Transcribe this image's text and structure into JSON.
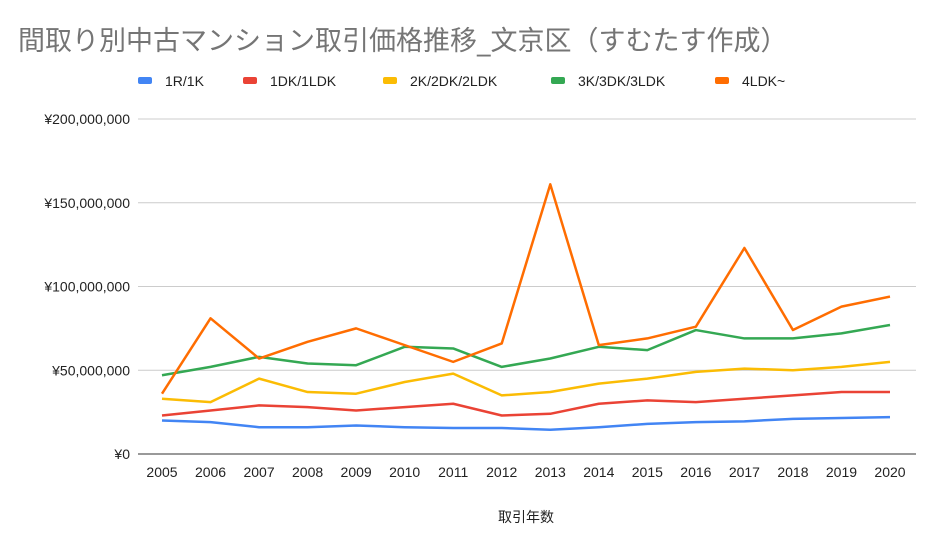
{
  "chart_data": {
    "type": "line",
    "title": "間取り別中古マンション取引価格推移_文京区（すむたす作成）",
    "xlabel": "取引年数",
    "ylabel": "",
    "categories": [
      "2005",
      "2006",
      "2007",
      "2008",
      "2009",
      "2010",
      "2011",
      "2012",
      "2013",
      "2014",
      "2015",
      "2016",
      "2017",
      "2018",
      "2019",
      "2020"
    ],
    "ylim": [
      0,
      200000000
    ],
    "yticks": [
      0,
      50000000,
      100000000,
      150000000,
      200000000
    ],
    "ytick_labels": [
      "¥0",
      "¥50,000,000",
      "¥100,000,000",
      "¥150,000,000",
      "¥200,000,000"
    ],
    "grid": true,
    "legend_position": "top",
    "series": [
      {
        "name": "1R/1K",
        "color": "#4285f4",
        "values": [
          20000000,
          19000000,
          16000000,
          16000000,
          17000000,
          16000000,
          15500000,
          15500000,
          14500000,
          16000000,
          18000000,
          19000000,
          19500000,
          21000000,
          21500000,
          22000000
        ]
      },
      {
        "name": "1DK/1LDK",
        "color": "#ea4335",
        "values": [
          23000000,
          26000000,
          29000000,
          28000000,
          26000000,
          28000000,
          30000000,
          23000000,
          24000000,
          30000000,
          32000000,
          31000000,
          33000000,
          35000000,
          37000000,
          37000000
        ]
      },
      {
        "name": "2K/2DK/2LDK",
        "color": "#fbbc04",
        "values": [
          33000000,
          31000000,
          45000000,
          37000000,
          36000000,
          43000000,
          48000000,
          35000000,
          37000000,
          42000000,
          45000000,
          49000000,
          51000000,
          50000000,
          52000000,
          55000000
        ]
      },
      {
        "name": "3K/3DK/3LDK",
        "color": "#34a853",
        "values": [
          47000000,
          52000000,
          58000000,
          54000000,
          53000000,
          64000000,
          63000000,
          52000000,
          57000000,
          64000000,
          62000000,
          74000000,
          69000000,
          69000000,
          72000000,
          77000000
        ]
      },
      {
        "name": "4LDK~",
        "color": "#ff6d01",
        "values": [
          36000000,
          81000000,
          57000000,
          67000000,
          75000000,
          65000000,
          55000000,
          66000000,
          161000000,
          65000000,
          69000000,
          76000000,
          123000000,
          74000000,
          88000000,
          94000000
        ]
      }
    ]
  }
}
